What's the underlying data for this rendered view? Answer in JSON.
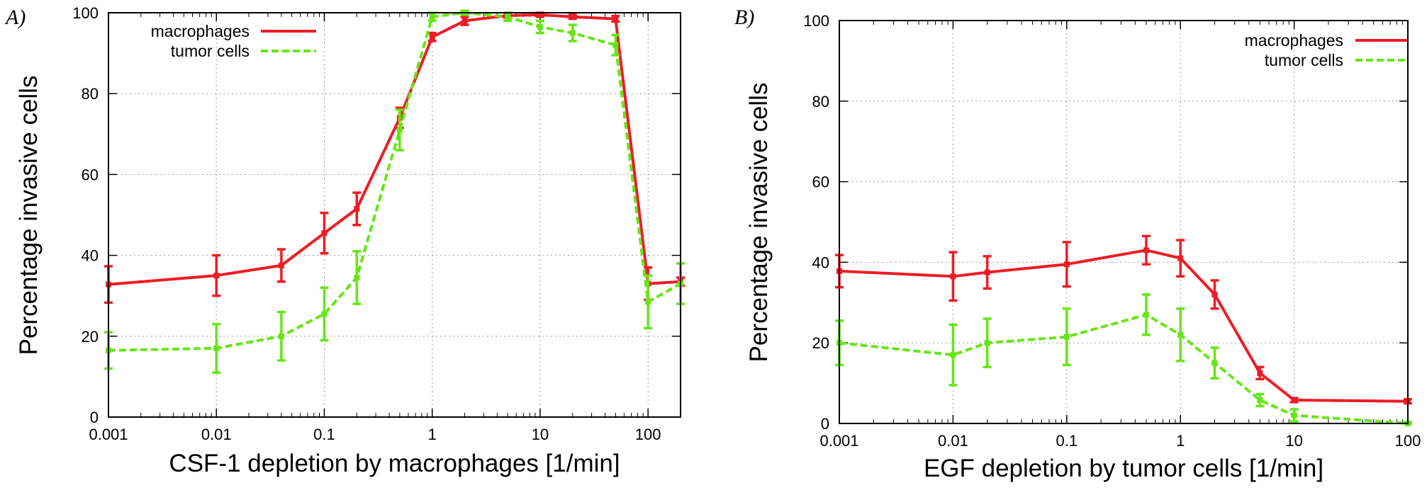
{
  "chart_data": [
    {
      "type": "line",
      "panel_label": "A)",
      "title": "",
      "xlabel": "CSF-1 depletion by macrophages [1/min]",
      "ylabel": "Percentage invasive cells",
      "xscale": "log",
      "xlim": [
        0.001,
        200
      ],
      "ylim": [
        0,
        100
      ],
      "xticks": [
        0.001,
        0.01,
        0.1,
        1,
        10,
        100
      ],
      "xtick_labels": [
        "0.001",
        "0.01",
        "0.1",
        "1",
        "10",
        "100"
      ],
      "yticks": [
        0,
        20,
        40,
        60,
        80,
        100
      ],
      "ytick_labels": [
        "0",
        "20",
        "40",
        "60",
        "80",
        "100"
      ],
      "grid": true,
      "legend_position": "top-left",
      "series": [
        {
          "name": "macrophages",
          "color": "#ee1c25",
          "dash": "solid",
          "x": [
            0.001,
            0.01,
            0.04,
            0.1,
            0.2,
            0.5,
            1,
            2,
            5,
            10,
            20,
            50,
            100,
            200
          ],
          "y": [
            32.8,
            35,
            37.5,
            45.5,
            51.5,
            74,
            94,
            98,
            99.3,
            99.5,
            99,
            98.5,
            33,
            33.5
          ],
          "err": [
            4.5,
            5,
            4,
            5,
            4,
            2.5,
            1,
            1,
            0.5,
            0.5,
            0.5,
            0.7,
            4,
            1
          ]
        },
        {
          "name": "tumor cells",
          "color": "#66e616",
          "dash": "dashed",
          "x": [
            0.001,
            0.01,
            0.04,
            0.1,
            0.2,
            0.5,
            1,
            2,
            5,
            10,
            20,
            50,
            100,
            200
          ],
          "y": [
            16.5,
            17,
            20,
            25.5,
            34.5,
            71,
            99,
            100,
            99,
            96.5,
            95,
            92,
            28.5,
            33
          ],
          "err": [
            4.5,
            6,
            6,
            6.5,
            6.5,
            5,
            1,
            0.5,
            1,
            1.5,
            2,
            2.5,
            6.5,
            5
          ]
        }
      ]
    },
    {
      "type": "line",
      "panel_label": "B)",
      "title": "",
      "xlabel": "EGF depletion by tumor cells [1/min]",
      "ylabel": "Percentage invasive cells",
      "xscale": "log",
      "xlim": [
        0.001,
        100
      ],
      "ylim": [
        0,
        100
      ],
      "xticks": [
        0.001,
        0.01,
        0.1,
        1,
        10,
        100
      ],
      "xtick_labels": [
        "0.001",
        "0.01",
        "0.1",
        "1",
        "10",
        "100"
      ],
      "yticks": [
        0,
        20,
        40,
        60,
        80,
        100
      ],
      "ytick_labels": [
        "0",
        "20",
        "40",
        "60",
        "80",
        "100"
      ],
      "grid": true,
      "legend_position": "top-right",
      "series": [
        {
          "name": "macrophages",
          "color": "#ee1c25",
          "dash": "solid",
          "x": [
            0.001,
            0.01,
            0.02,
            0.1,
            0.5,
            1,
            2,
            5,
            10,
            100
          ],
          "y": [
            37.8,
            36.5,
            37.5,
            39.5,
            43,
            41,
            32,
            12.5,
            5.8,
            5.5
          ],
          "err": [
            4,
            6,
            4,
            5.5,
            3.5,
            4.5,
            3.5,
            1.5,
            0.5,
            0.5
          ]
        },
        {
          "name": "tumor cells",
          "color": "#66e616",
          "dash": "dashed",
          "x": [
            0.001,
            0.01,
            0.02,
            0.1,
            0.5,
            1,
            2,
            5,
            10,
            100
          ],
          "y": [
            20,
            17,
            20,
            21.5,
            27,
            22,
            15,
            5.8,
            2,
            0
          ],
          "err": [
            5.5,
            7.5,
            6,
            7,
            5,
            6.5,
            3.8,
            1.5,
            1.5,
            0.3
          ]
        }
      ]
    }
  ]
}
